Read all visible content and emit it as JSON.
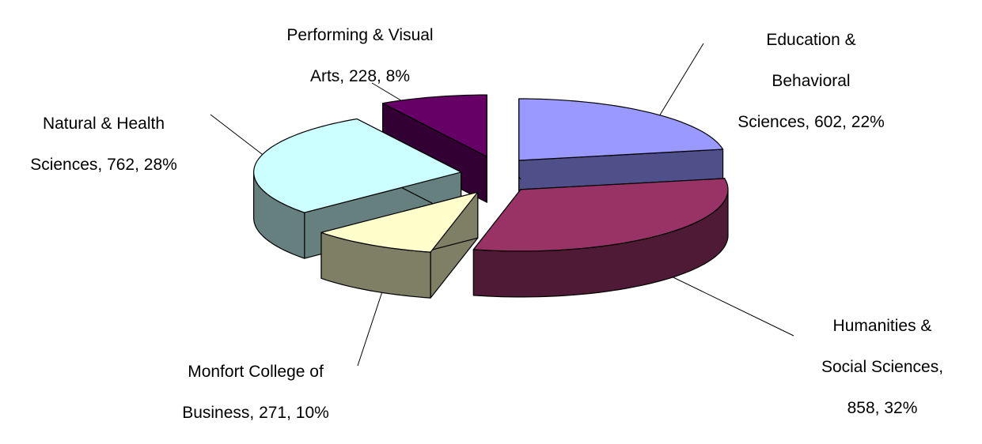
{
  "chart_data": {
    "type": "pie",
    "style": "3d-exploded",
    "title": "",
    "slices": [
      {
        "name": "Education & Behavioral Sciences",
        "value": 602,
        "percent": "22%",
        "label_lines": [
          "Education &",
          "Behavioral",
          "Sciences, 602, 22%"
        ],
        "top_color": "#9999ff",
        "side_color": "#4f4f8a"
      },
      {
        "name": "Humanities & Social Sciences",
        "value": 858,
        "percent": "32%",
        "label_lines": [
          "Humanities &",
          "Social Sciences,",
          "858, 32%"
        ],
        "top_color": "#993366",
        "side_color": "#4f1a35"
      },
      {
        "name": "Monfort College of Business",
        "value": 271,
        "percent": "10%",
        "label_lines": [
          "Monfort College of",
          "Business, 271, 10%"
        ],
        "top_color": "#ffffcc",
        "side_color": "#7f7f66"
      },
      {
        "name": "Natural & Health Sciences",
        "value": 762,
        "percent": "28%",
        "label_lines": [
          "Natural & Health",
          "Sciences, 762, 28%"
        ],
        "top_color": "#ccffff",
        "side_color": "#668080"
      },
      {
        "name": "Performing & Visual Arts",
        "value": 228,
        "percent": "8%",
        "label_lines": [
          "Performing & Visual",
          "Arts, 228, 8%"
        ],
        "top_color": "#660066",
        "side_color": "#330033"
      }
    ],
    "stray_mark": "`"
  }
}
